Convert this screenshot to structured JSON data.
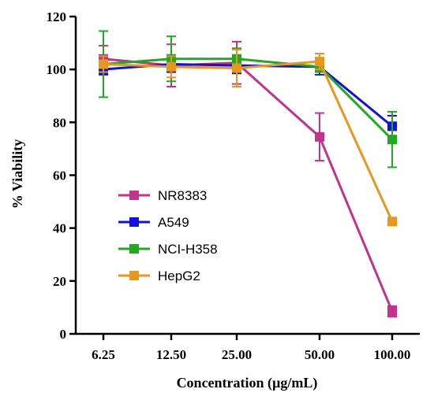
{
  "chart_data": {
    "type": "line",
    "title": "",
    "xlabel": "Concentration (µg/mL)",
    "ylabel": "% Viability",
    "categories": [
      "6.25",
      "12.50",
      "25.00",
      "50.00",
      "100.00"
    ],
    "ylim": [
      0,
      120
    ],
    "yticks": [
      "0",
      "20",
      "40",
      "60",
      "80",
      "100",
      "120"
    ],
    "grid": false,
    "legend_position": "left-center",
    "series": [
      {
        "name": "NR8383",
        "color": "#c2338e",
        "values": [
          104,
          101.5,
          102.5,
          74.5,
          8.5
        ],
        "errors": [
          5,
          8,
          8,
          9,
          2
        ]
      },
      {
        "name": "A549",
        "color": "#1010e0",
        "values": [
          100,
          102,
          101.5,
          101,
          78.5
        ],
        "errors": [
          2,
          3,
          3,
          3,
          4
        ]
      },
      {
        "name": "NCI-H358",
        "color": "#22a822",
        "values": [
          102,
          104,
          104,
          101,
          73.5
        ],
        "errors": [
          12.5,
          8.5,
          4,
          2,
          10.5
        ]
      },
      {
        "name": "HepG2",
        "color": "#e8961c",
        "values": [
          102,
          101,
          100.5,
          103,
          42.5
        ],
        "errors": [
          3,
          4,
          7,
          3,
          1
        ]
      }
    ]
  }
}
